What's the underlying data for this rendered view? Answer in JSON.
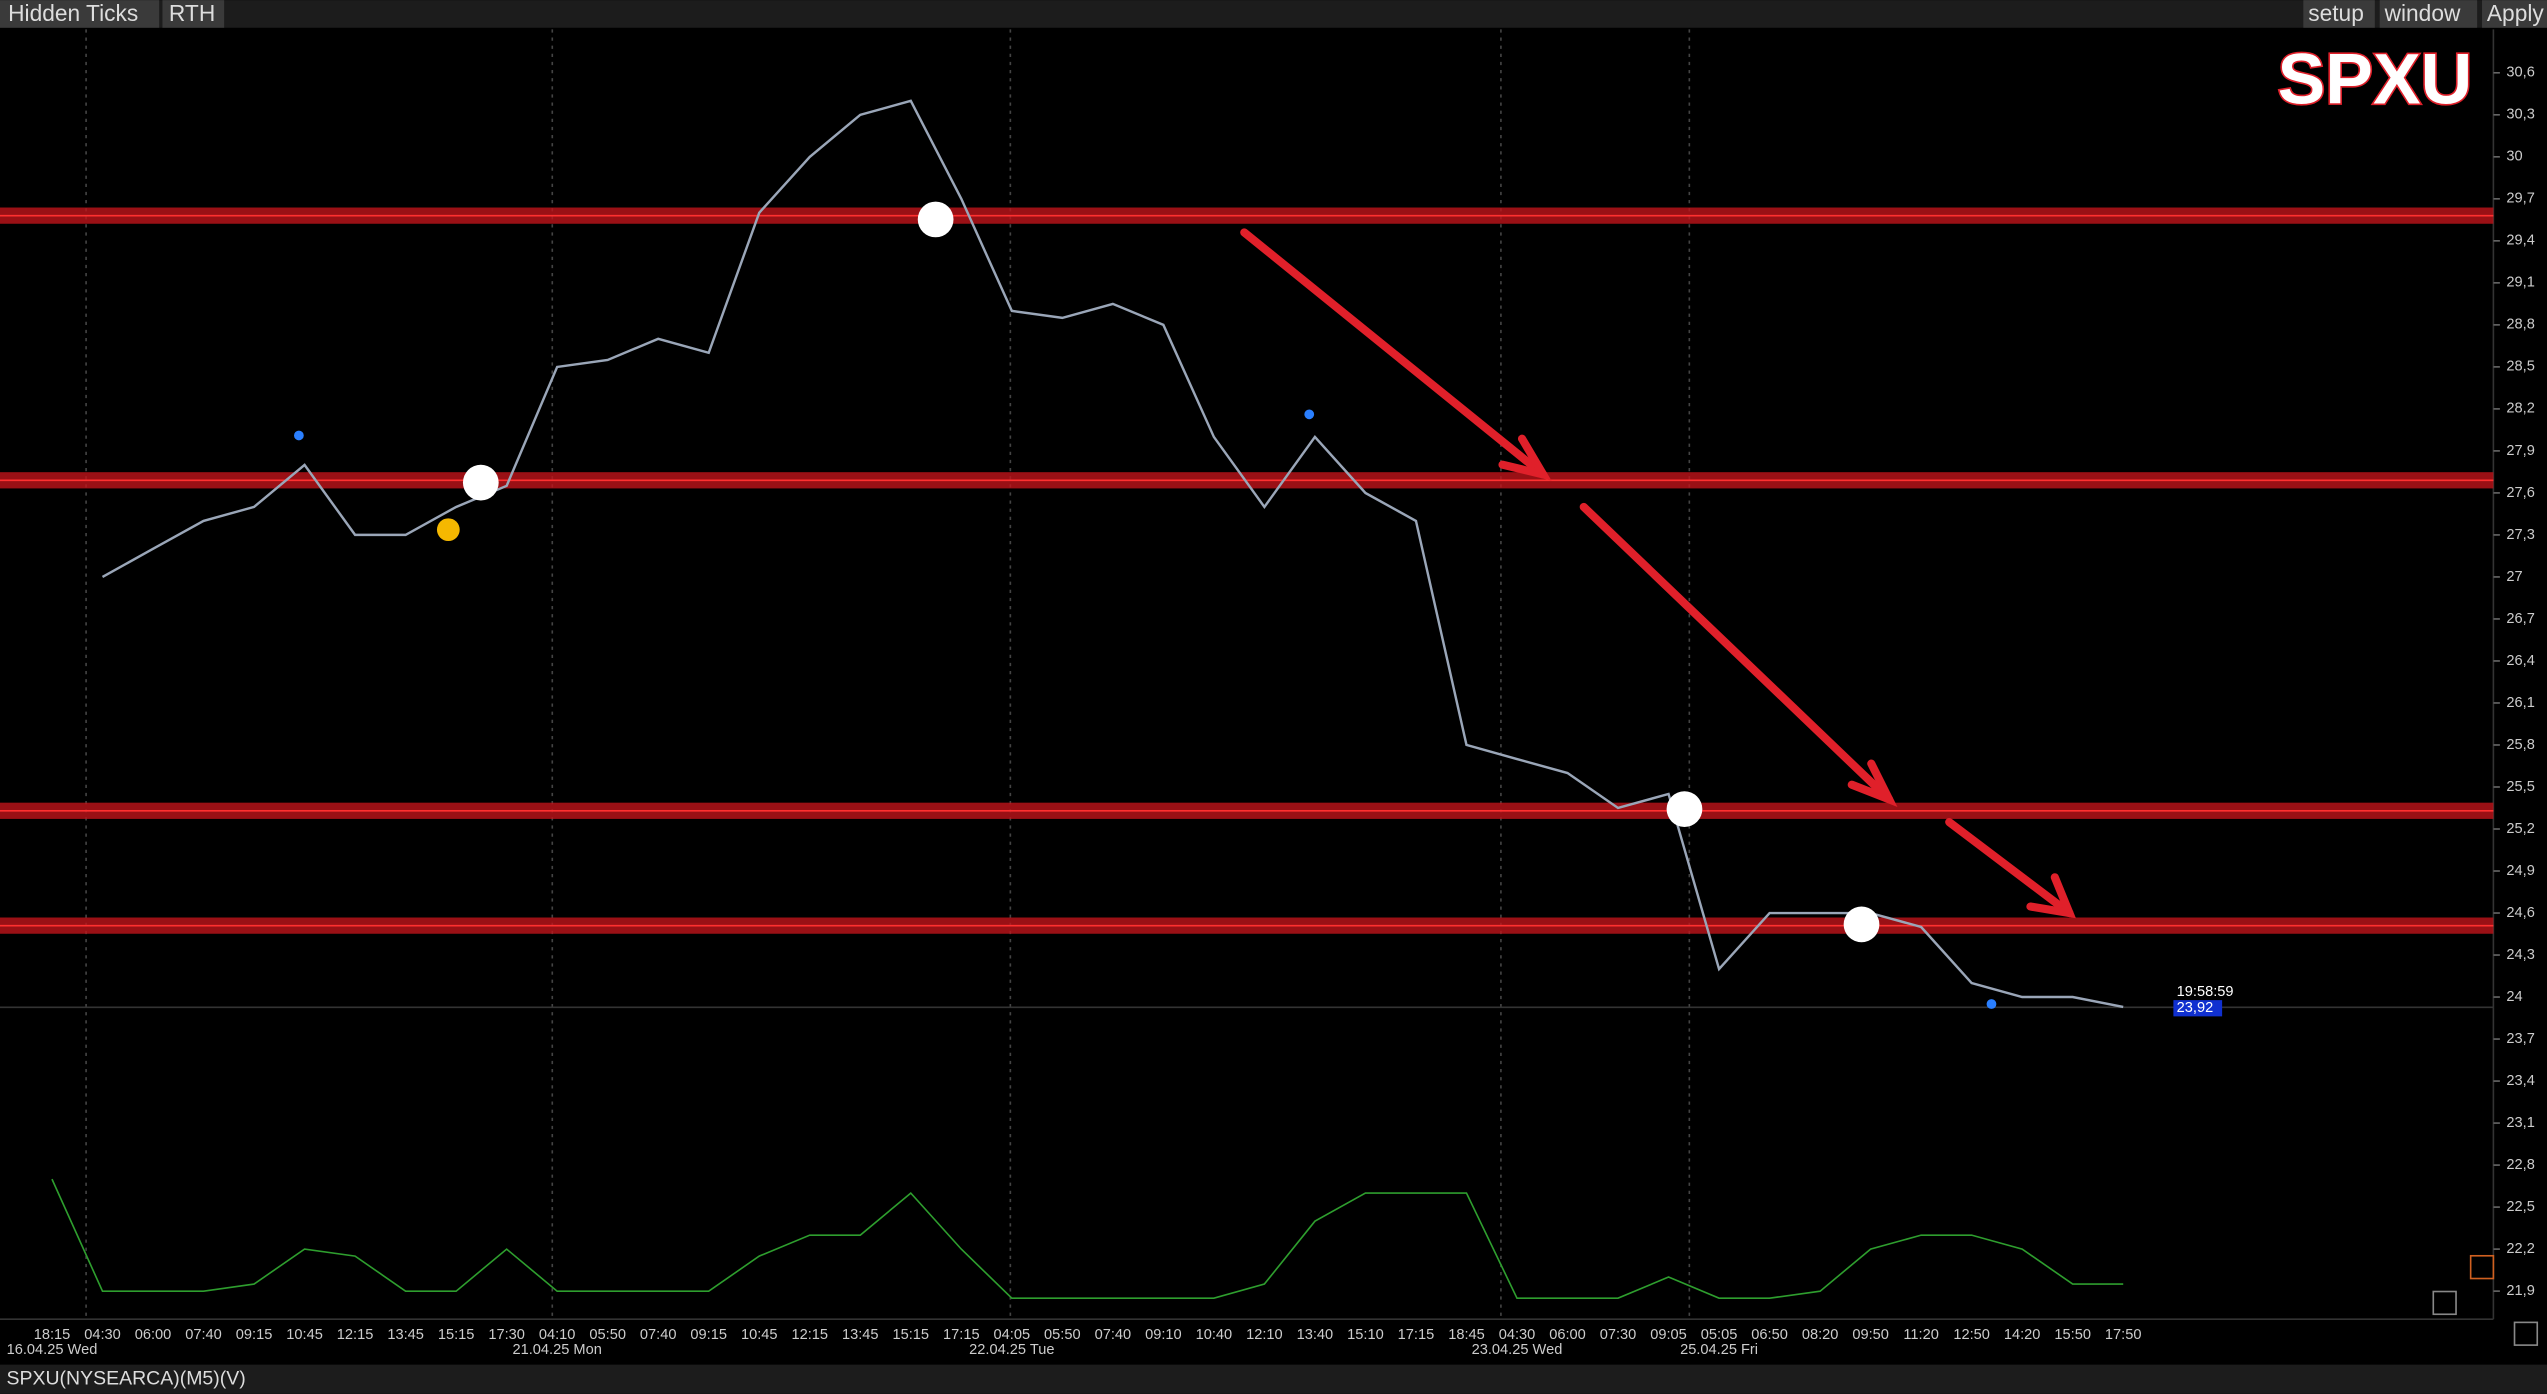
{
  "toolbar": {
    "left": [
      "Hidden Ticks",
      "RTH"
    ],
    "right": [
      "setup",
      "window",
      "Apply"
    ]
  },
  "footer": "SPXU(NYSEARCA)(M5)(V)",
  "chart_data": {
    "type": "line",
    "title": "SPXU",
    "categories": [
      "18:15",
      "04:30",
      "06:00",
      "07:40",
      "09:15",
      "10:45",
      "12:15",
      "13:45",
      "15:15",
      "17:30",
      "04:10",
      "05:50",
      "07:40",
      "09:15",
      "10:45",
      "12:15",
      "13:45",
      "15:15",
      "17:15",
      "04:05",
      "05:50",
      "07:40",
      "09:10",
      "10:40",
      "12:10",
      "13:40",
      "15:10",
      "17:15",
      "18:45",
      "04:30",
      "06:00",
      "07:30",
      "09:05",
      "05:05",
      "06:50",
      "08:20",
      "09:50",
      "11:20",
      "12:50",
      "14:20",
      "15:50",
      "17:50"
    ],
    "date_labels": [
      "16.04.25 Wed",
      null,
      null,
      null,
      null,
      null,
      null,
      null,
      null,
      null,
      "21.04.25 Mon",
      null,
      null,
      null,
      null,
      null,
      null,
      null,
      null,
      "22.04.25 Tue",
      null,
      null,
      null,
      null,
      null,
      null,
      null,
      null,
      null,
      "23.04.25 Wed",
      null,
      null,
      null,
      "25.04.25 Fri",
      null,
      null,
      null,
      null,
      null,
      null,
      null,
      null
    ],
    "series": [
      {
        "name": "SPXU",
        "color": "#9aa6b8",
        "values": [
          null,
          27.0,
          27.2,
          27.4,
          27.5,
          27.8,
          27.3,
          27.3,
          27.5,
          27.65,
          28.5,
          28.55,
          28.7,
          28.6,
          29.6,
          30.0,
          30.3,
          30.4,
          29.7,
          28.9,
          28.85,
          28.95,
          28.8,
          28.0,
          27.5,
          28.0,
          27.6,
          27.4,
          25.8,
          25.7,
          25.6,
          25.35,
          25.45,
          24.2,
          24.6,
          24.6,
          24.6,
          24.5,
          24.1,
          24.0,
          24.0,
          23.93
        ]
      },
      {
        "name": "V",
        "color": "#2e9e2e",
        "values": [
          22.7,
          21.9,
          21.9,
          21.9,
          21.95,
          22.2,
          22.15,
          21.9,
          21.9,
          22.2,
          21.9,
          21.9,
          21.9,
          21.9,
          22.15,
          22.3,
          22.3,
          22.6,
          22.2,
          21.85,
          21.85,
          21.85,
          21.85,
          21.85,
          21.95,
          22.4,
          22.6,
          22.6,
          22.6,
          21.85,
          21.85,
          21.85,
          22.0,
          21.85,
          21.85,
          21.9,
          22.2,
          22.3,
          22.3,
          22.2,
          21.95,
          21.95
        ]
      }
    ],
    "levels": [
      29.58,
      27.69,
      25.33,
      24.51
    ],
    "level_color": "#c0141a",
    "last_price": {
      "value": 23.92,
      "label": "23,92"
    },
    "last_time": "19:58:59",
    "ylim": [
      21.7,
      30.91
    ],
    "yticks": [
      {
        "value": 30.6,
        "label": "30,6"
      },
      {
        "value": 30.3,
        "label": "30,3"
      },
      30,
      {
        "value": 29.7,
        "label": "29,7"
      },
      {
        "value": 29.4,
        "label": "29,4"
      },
      {
        "value": 29.1,
        "label": "29,1"
      },
      {
        "value": 28.8,
        "label": "28,8"
      },
      {
        "value": 28.5,
        "label": "28,5"
      },
      {
        "value": 28.2,
        "label": "28,2"
      },
      {
        "value": 27.9,
        "label": "27,9"
      },
      {
        "value": 27.6,
        "label": "27,6"
      },
      {
        "value": 27.3,
        "label": "27,3"
      },
      27,
      {
        "value": 26.7,
        "label": "26,7"
      },
      {
        "value": 26.4,
        "label": "26,4"
      },
      {
        "value": 26.1,
        "label": "26,1"
      },
      {
        "value": 25.8,
        "label": "25,8"
      },
      {
        "value": 25.5,
        "label": "25,5"
      },
      {
        "value": 25.2,
        "label": "25,2"
      },
      {
        "value": 24.9,
        "label": "24,9"
      },
      {
        "value": 24.6,
        "label": "24,6"
      },
      {
        "value": 24.3,
        "label": "24,3"
      },
      24,
      {
        "value": 23.7,
        "label": "23,7"
      },
      {
        "value": 23.4,
        "label": "23,4"
      },
      {
        "value": 23.1,
        "label": "23,1"
      },
      {
        "value": 22.8,
        "label": "22,8"
      },
      {
        "value": 22.5,
        "label": "22,5"
      },
      {
        "value": 22.2,
        "label": "22,2"
      },
      {
        "value": 21.9,
        "label": "21,9"
      }
    ]
  }
}
